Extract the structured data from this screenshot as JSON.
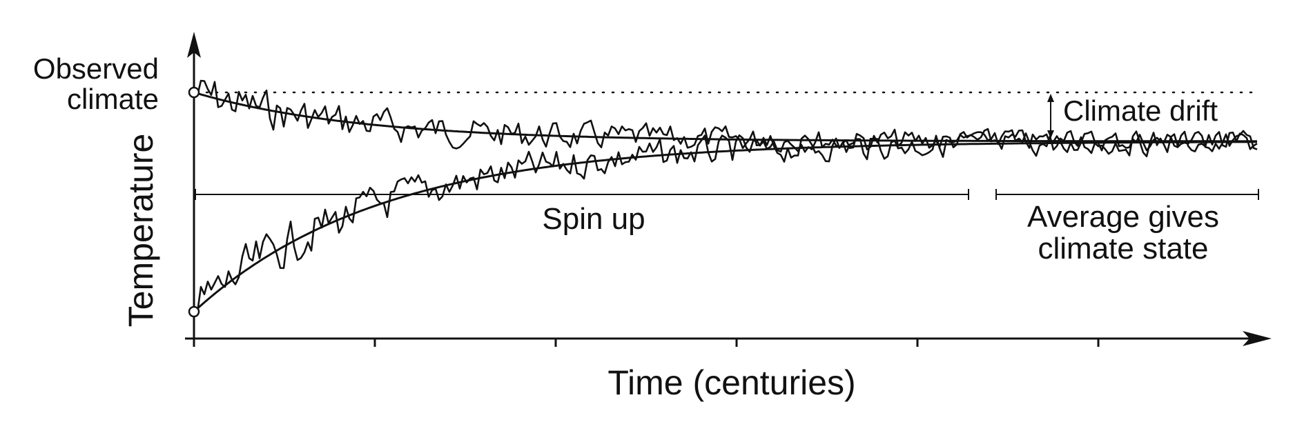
{
  "labels": {
    "observed_line1": "Observed",
    "observed_line2": "climate",
    "y_axis": "Temperature",
    "x_axis": "Time (centuries)",
    "spin_up": "Spin up",
    "average_line1": "Average gives",
    "average_line2": "climate state",
    "climate_drift": "Climate drift"
  },
  "colors": {
    "ink": "#111111",
    "background": "#ffffff"
  },
  "diagram": {
    "x_ticks": 6,
    "series": [
      {
        "start": "observed climate (high)",
        "trend": "decays toward equilibrium"
      },
      {
        "start": "low temperature",
        "trend": "rises toward equilibrium"
      }
    ]
  }
}
